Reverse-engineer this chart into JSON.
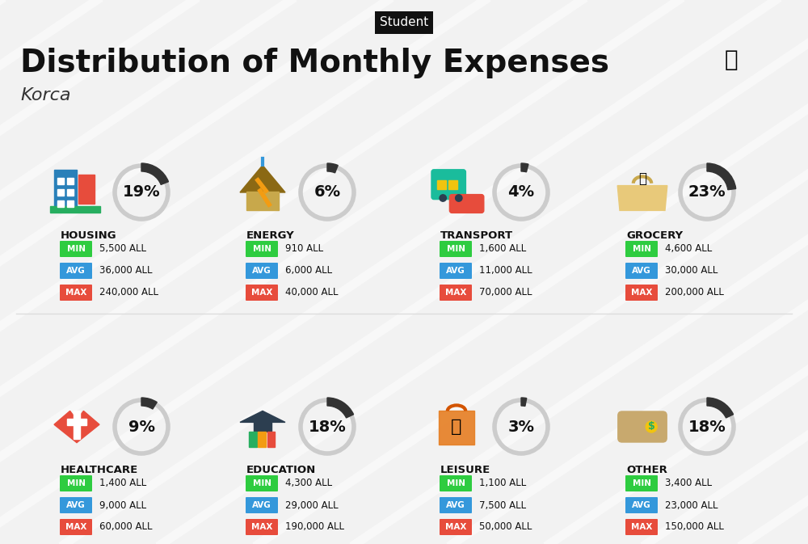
{
  "title": "Distribution of Monthly Expenses",
  "subtitle": "Student",
  "city": "Korca",
  "bg_color": "#f2f2f2",
  "categories": [
    {
      "name": "HOUSING",
      "pct": 19,
      "min": "5,500 ALL",
      "avg": "36,000 ALL",
      "max": "240,000 ALL",
      "icon": "housing",
      "row": 0,
      "col": 0
    },
    {
      "name": "ENERGY",
      "pct": 6,
      "min": "910 ALL",
      "avg": "6,000 ALL",
      "max": "40,000 ALL",
      "icon": "energy",
      "row": 0,
      "col": 1
    },
    {
      "name": "TRANSPORT",
      "pct": 4,
      "min": "1,600 ALL",
      "avg": "11,000 ALL",
      "max": "70,000 ALL",
      "icon": "transport",
      "row": 0,
      "col": 2
    },
    {
      "name": "GROCERY",
      "pct": 23,
      "min": "4,600 ALL",
      "avg": "30,000 ALL",
      "max": "200,000 ALL",
      "icon": "grocery",
      "row": 0,
      "col": 3
    },
    {
      "name": "HEALTHCARE",
      "pct": 9,
      "min": "1,400 ALL",
      "avg": "9,000 ALL",
      "max": "60,000 ALL",
      "icon": "healthcare",
      "row": 1,
      "col": 0
    },
    {
      "name": "EDUCATION",
      "pct": 18,
      "min": "4,300 ALL",
      "avg": "29,000 ALL",
      "max": "190,000 ALL",
      "icon": "education",
      "row": 1,
      "col": 1
    },
    {
      "name": "LEISURE",
      "pct": 3,
      "min": "1,100 ALL",
      "avg": "7,500 ALL",
      "max": "50,000 ALL",
      "icon": "leisure",
      "row": 1,
      "col": 2
    },
    {
      "name": "OTHER",
      "pct": 18,
      "min": "3,400 ALL",
      "avg": "23,000 ALL",
      "max": "150,000 ALL",
      "icon": "other",
      "row": 1,
      "col": 3
    }
  ],
  "min_color": "#2ecc40",
  "avg_color": "#3498db",
  "max_color": "#e74c3c",
  "label_color": "#ffffff",
  "text_color": "#222222",
  "circle_color": "#333333",
  "circle_bg": "#cccccc"
}
